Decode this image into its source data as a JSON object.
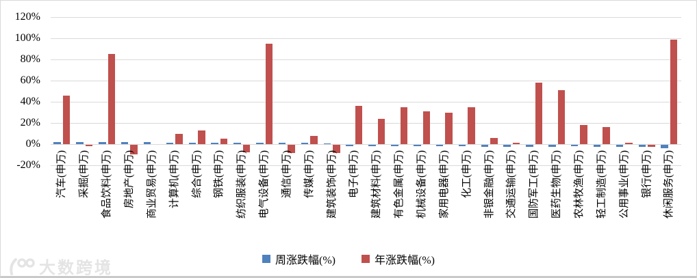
{
  "chart_data": {
    "type": "bar",
    "title": "",
    "xlabel": "",
    "ylabel": "",
    "grid": true,
    "legend_position": "bottom",
    "ylim": [
      -20,
      120
    ],
    "ytick_values": [
      120,
      100,
      80,
      60,
      40,
      20,
      0,
      -20
    ],
    "ytick_labels": [
      "120%",
      "100%",
      "80%",
      "60%",
      "40%",
      "20%",
      "0%",
      "-20%"
    ],
    "categories": [
      "汽车(申万)",
      "采掘(申万)",
      "食品饮料(申万)",
      "房地产(申万)",
      "商业贸易(申万)",
      "计算机(申万)",
      "综合(申万)",
      "钢铁(申万)",
      "纺织服装(申万)",
      "电气设备(申万)",
      "通信(申万)",
      "传媒(申万)",
      "建筑装饰(申万)",
      "电子(申万)",
      "建筑材料(申万)",
      "有色金属(申万)",
      "机械设备(申万)",
      "家用电器(申万)",
      "化工(申万)",
      "非银金融(申万)",
      "交通运输(申万)",
      "国防军工(申万)",
      "医药生物(申万)",
      "农林牧渔(申万)",
      "轻工制造(申万)",
      "公用事业(申万)",
      "银行(申万)",
      "休闲服务(申万)"
    ],
    "series": [
      {
        "name": "周涨跌幅(%)",
        "color": "#4F81BD",
        "values": [
          2,
          2,
          2,
          2,
          2,
          1,
          1,
          1,
          1,
          1,
          1,
          1,
          0.5,
          -1,
          -1,
          -1,
          -1,
          -1,
          -1.5,
          -2,
          -2,
          -2,
          -2,
          -1.5,
          -2,
          -2,
          -2,
          -3
        ]
      },
      {
        "name": "年涨跌幅(%)",
        "color": "#C0504D",
        "values": [
          46,
          -1,
          85,
          -9,
          0,
          10,
          13,
          5,
          -7,
          95,
          -8,
          8,
          -8,
          36,
          24,
          35,
          31,
          30,
          35,
          6,
          1,
          58,
          51,
          18,
          16,
          1,
          -2,
          99
        ]
      }
    ]
  },
  "watermark": {
    "text": "大数跨境"
  },
  "colors": {
    "weekly_series": "#4F81BD",
    "yearly_series": "#C0504D",
    "gridline": "#d9d9d9",
    "background": "#ffffff",
    "watermark": "#e4e4e4"
  }
}
